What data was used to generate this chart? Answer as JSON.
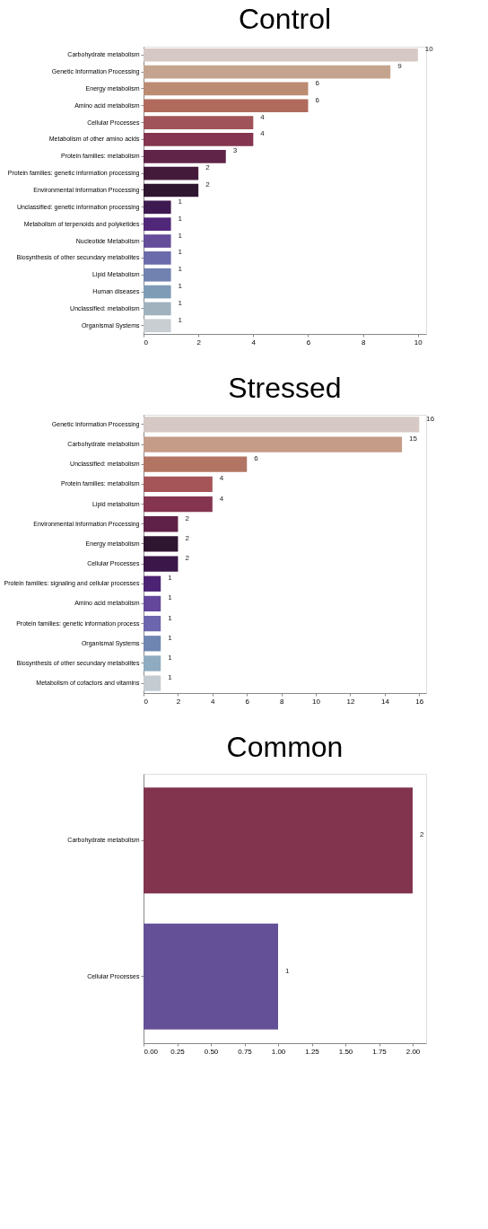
{
  "chart_data": [
    {
      "type": "bar",
      "orientation": "horizontal",
      "title": "Control",
      "categories": [
        "Carbohydrate metabolism",
        "Genetic Information Processing",
        "Energy metabolism",
        "Amino acid metabolism",
        "Cellular Processes",
        "Metabolism of other amino acids",
        "Protein families: metabolism",
        "Protein families: genetic information processing",
        "Environmental Information Processing",
        "Unclassified: genetic information processing",
        "Metabolism of terpenoids and polyketides",
        "Nucleotide Metabolism",
        "Biosynthesis of other secundary metabolites",
        "Lipid Metabolism",
        "Human diseases",
        "Unclassified: metabolism",
        "Organismal Systems"
      ],
      "values": [
        10,
        9,
        6,
        6,
        4,
        4,
        3,
        2,
        2,
        1,
        1,
        1,
        1,
        1,
        1,
        1,
        1
      ],
      "colors": [
        "#d6c8c4",
        "#c4a48e",
        "#bb8b72",
        "#b06b5c",
        "#a05459",
        "#85354f",
        "#5f2448",
        "#431a3a",
        "#2e1530",
        "#3e1a52",
        "#51277a",
        "#644e9a",
        "#6b6aaa",
        "#7182b0",
        "#7e9cb6",
        "#9fb2be",
        "#c9ced3"
      ],
      "xlim": [
        0,
        10.3
      ],
      "xticks": [
        0,
        2,
        4,
        6,
        8,
        10
      ],
      "data_labels": true,
      "grid": false
    },
    {
      "type": "bar",
      "orientation": "horizontal",
      "title": "Stressed",
      "categories": [
        "Genetic Information Processing",
        "Carbohydrate metabolism",
        "Unclassified: metabolism",
        "Protein families: metabolism",
        "Lipid metabolism",
        "Environmental Information Processing",
        "Energy metabolism",
        "Cellular Processes",
        "Protein families: signaling and cellular processes",
        "Amino acid metabolism",
        "Protein families: genetic information process",
        "Organismal Systems",
        "Biosynthesis of other secundary metabolites",
        "Metabolism of cofactors and vitamins"
      ],
      "values": [
        16,
        15,
        6,
        4,
        4,
        2,
        2,
        2,
        1,
        1,
        1,
        1,
        1,
        1
      ],
      "colors": [
        "#d6c8c4",
        "#c49c88",
        "#b27564",
        "#a55458",
        "#85354f",
        "#5f2148",
        "#2e1530",
        "#3a1748",
        "#4c2374",
        "#64479a",
        "#6b66ad",
        "#7086b2",
        "#8eabc0",
        "#c4ccd2"
      ],
      "xlim": [
        0,
        16.4
      ],
      "xticks": [
        0,
        2,
        4,
        6,
        8,
        10,
        12,
        14,
        16
      ],
      "data_labels": true,
      "grid": false
    },
    {
      "type": "bar",
      "orientation": "horizontal",
      "title": "Common",
      "categories": [
        "Carbohydrate metabolism",
        "Cellular Processes"
      ],
      "values": [
        2,
        1
      ],
      "colors": [
        "#82344f",
        "#645097"
      ],
      "xlim": [
        0,
        2.1
      ],
      "xticks": [
        {
          "value": 0,
          "label": "0.00"
        },
        {
          "value": 0.25,
          "label": "0.25"
        },
        {
          "value": 0.5,
          "label": "0.50"
        },
        {
          "value": 0.75,
          "label": "0.75"
        },
        {
          "value": 1,
          "label": "1.00"
        },
        {
          "value": 1.25,
          "label": "1.25"
        },
        {
          "value": 1.5,
          "label": "1.50"
        },
        {
          "value": 1.75,
          "label": "1.75"
        },
        {
          "value": 2,
          "label": "2.00"
        }
      ],
      "data_labels": true,
      "grid": false
    }
  ]
}
